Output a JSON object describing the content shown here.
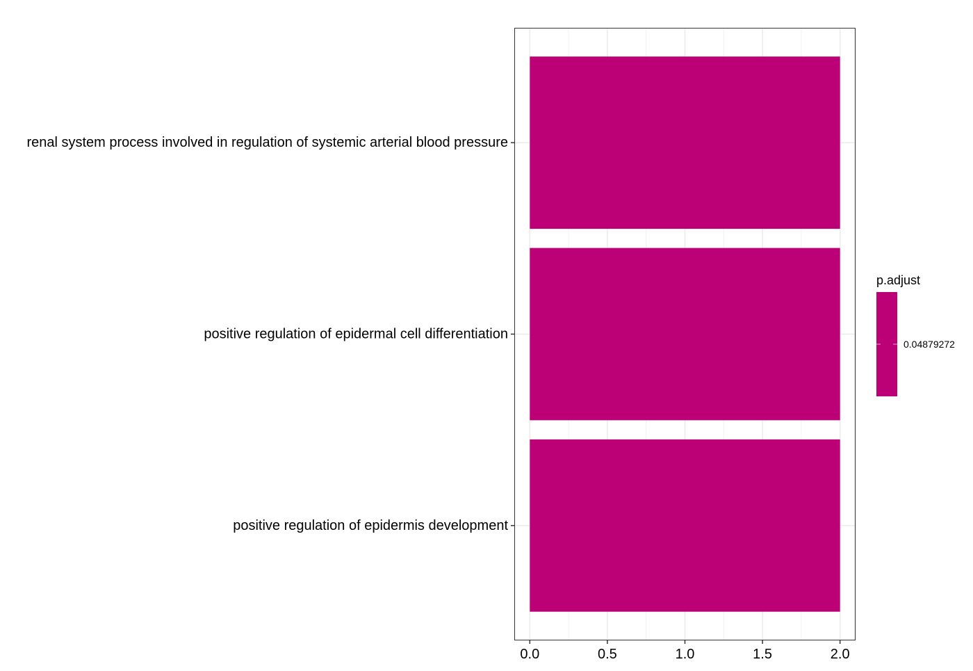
{
  "chart_data": {
    "type": "bar",
    "orientation": "horizontal",
    "categories": [
      "renal system process involved in regulation of systemic arterial blood pressure",
      "positive regulation of epidermal cell differentiation",
      "positive regulation of epidermis development"
    ],
    "values": [
      2,
      2,
      2
    ],
    "title": "",
    "xlabel": "",
    "ylabel": "",
    "xlim": [
      -0.1,
      2.1
    ],
    "xticks": [
      0.0,
      0.5,
      1.0,
      1.5,
      2.0
    ],
    "xtick_labels": [
      "0.0",
      "0.5",
      "1.0",
      "1.5",
      "2.0"
    ],
    "bar_color": "#BC0177",
    "grid": true,
    "legend": {
      "title": "p.adjust",
      "position": "right",
      "label": "0.04879272",
      "color": "#BC0177"
    }
  }
}
